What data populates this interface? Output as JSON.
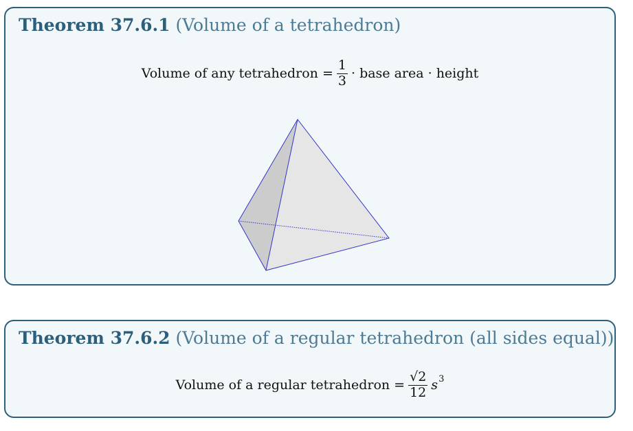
{
  "theorem1": {
    "number": "Theorem 37.6.1",
    "name": "(Volume of a tetrahedron)",
    "formula_lhs": "Volume of any tetrahedron =",
    "frac_num": "1",
    "frac_den": "3",
    "formula_rhs": "· base area · height"
  },
  "theorem2": {
    "number": "Theorem 37.6.2",
    "name": "(Volume of a regular tetrahedron (all sides equal))",
    "formula_lhs": "Volume of a regular tetrahedron =",
    "frac_num_radical": "√2",
    "frac_den": "12",
    "variable": "s",
    "exponent": "3"
  },
  "colors": {
    "box_border": "#2b5f7c",
    "box_fill": "#f2f8f9",
    "title": "#2b5f7c",
    "edge": "#3333cc",
    "face_front": "#e6e6e6",
    "face_left": "#cccccc"
  }
}
